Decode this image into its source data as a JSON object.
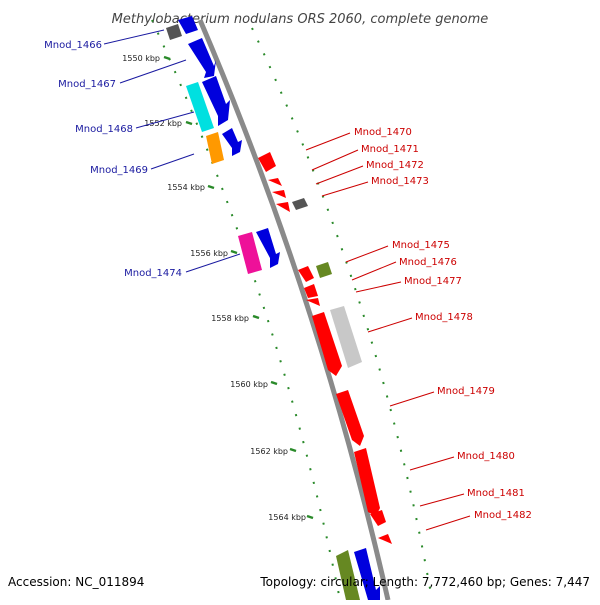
{
  "title": "Methylobacterium nodulans ORS 2060, complete genome",
  "footer": {
    "accession": "Accession: NC_011894",
    "summary": "Topology: circular; Length: 7,772,460 bp; Genes: 7,447"
  },
  "colors": {
    "backbone": "#8a8a8a",
    "ticks": "#2a8a2a",
    "left_labels": "#1a1aa0",
    "right_labels": "#cc0000",
    "red": "#ff0000",
    "blue": "#0000dd",
    "cyan": "#00e0e0",
    "orange": "#ff9900",
    "magenta": "#ee1199",
    "olive": "#668822",
    "grey": "#c8c8c8",
    "darkgrey": "#555555"
  },
  "kbp_marks": [
    "1550 kbp",
    "1552 kbp",
    "1554 kbp",
    "1556 kbp",
    "1558 kbp",
    "1560 kbp",
    "1562 kbp",
    "1564 kbp"
  ],
  "left_genes": [
    "Mnod_1466",
    "Mnod_1467",
    "Mnod_1468",
    "Mnod_1469",
    "Mnod_1474"
  ],
  "right_genes": [
    "Mnod_1470",
    "Mnod_1471",
    "Mnod_1472",
    "Mnod_1473",
    "Mnod_1475",
    "Mnod_1476",
    "Mnod_1477",
    "Mnod_1478",
    "Mnod_1479",
    "Mnod_1480",
    "Mnod_1481",
    "Mnod_1482"
  ]
}
